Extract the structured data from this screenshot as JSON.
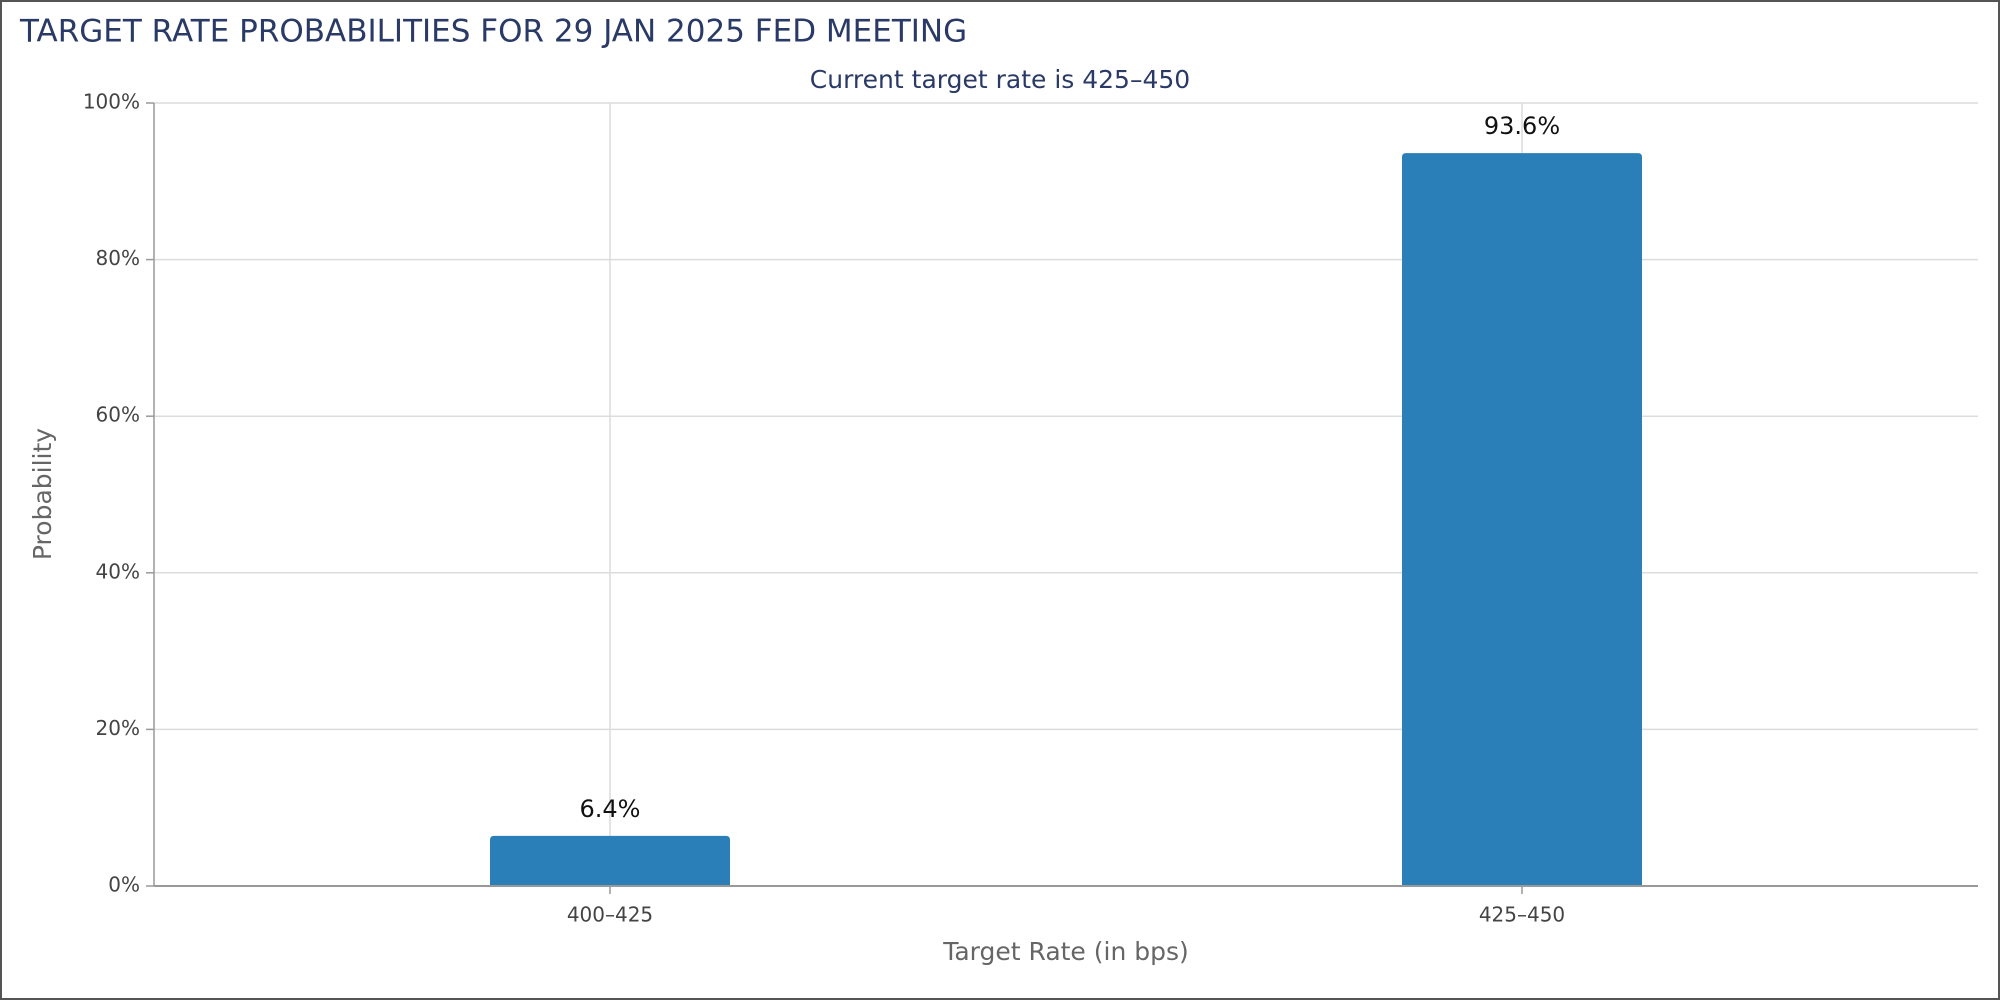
{
  "chart_data": {
    "type": "bar",
    "title": "TARGET RATE PROBABILITIES FOR 29 JAN 2025 FED MEETING",
    "subtitle": "Current target rate is 425–450",
    "x_label": "Target Rate (in bps)",
    "y_label": "Probability",
    "categories": [
      "400–425",
      "425–450"
    ],
    "values": [
      6.4,
      93.6
    ],
    "value_labels": [
      "6.4%",
      "93.6%"
    ],
    "color": "#2b7fb8",
    "ylim": [
      0,
      100
    ],
    "yticks": [
      {
        "value": 0,
        "label": "0%"
      },
      {
        "value": 20,
        "label": "20%"
      },
      {
        "value": 40,
        "label": "40%"
      },
      {
        "value": 60,
        "label": "60%"
      },
      {
        "value": 80,
        "label": "80%"
      },
      {
        "value": 100,
        "label": "100%"
      }
    ],
    "grid": true
  }
}
